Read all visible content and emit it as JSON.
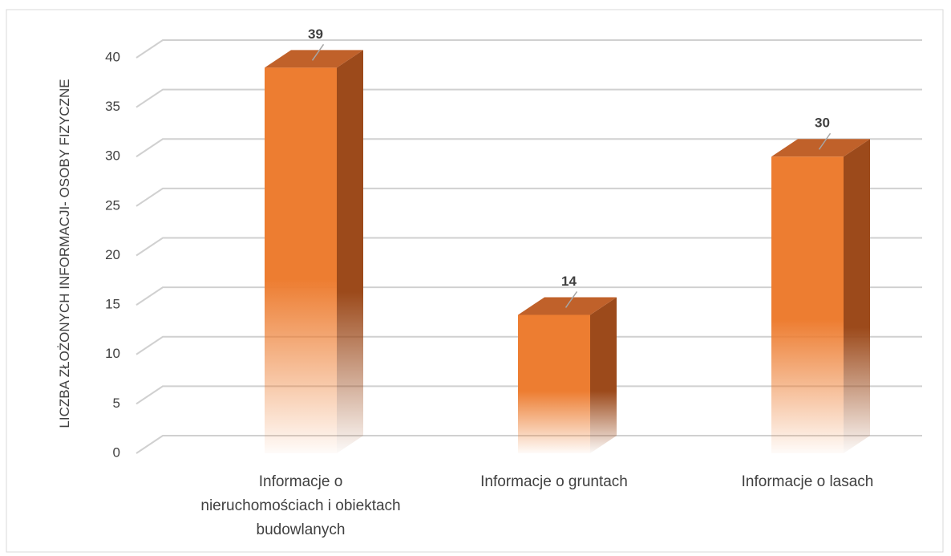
{
  "chart_data": {
    "type": "bar3d",
    "y_axis_label": "LICZBA ZŁOŻONYCH INFORMACJI-  OSOBY FIZYCZNE",
    "categories": [
      "Informacje o nieruchomościach i obiektach budowlanych",
      "Informacje o gruntach",
      "Informacje o lasach"
    ],
    "values": [
      39,
      14,
      30
    ],
    "color": "#ed7d31",
    "ylim": [
      0,
      40
    ],
    "yticks": [
      0,
      5,
      10,
      15,
      20,
      25,
      30,
      35,
      40
    ],
    "grid": true
  }
}
